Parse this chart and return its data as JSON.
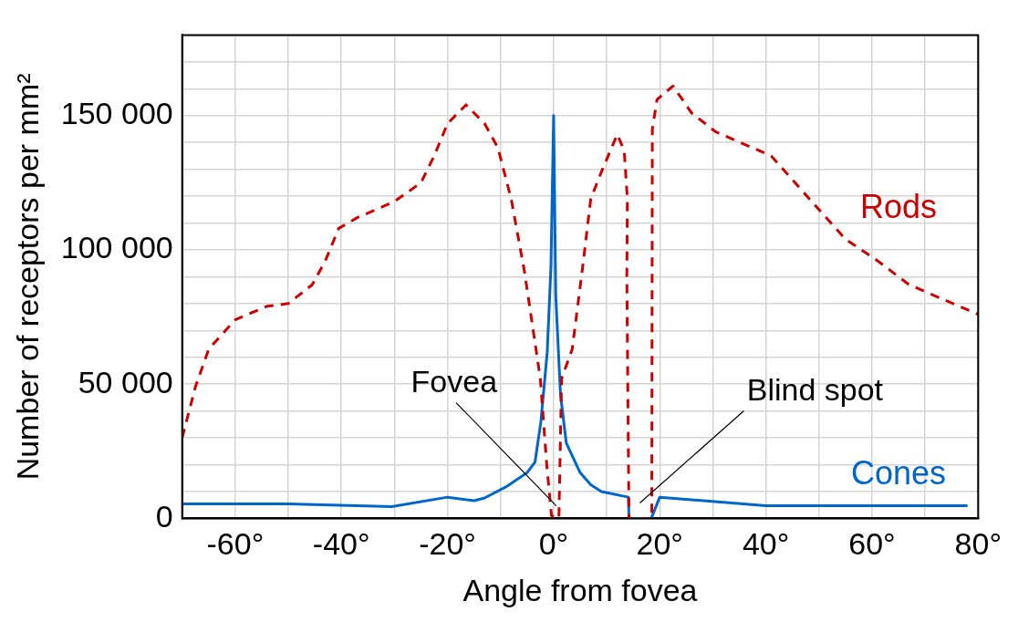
{
  "chart_data": {
    "type": "line",
    "xlabel": "Angle from fovea",
    "ylabel": "Number of receptors per mm²",
    "xlim": [
      -70,
      80
    ],
    "xticks": [
      {
        "value": -70,
        "label": null
      },
      {
        "value": -60,
        "label": "-60°"
      },
      {
        "value": -50,
        "label": null
      },
      {
        "value": -40,
        "label": "-40°"
      },
      {
        "value": -30,
        "label": null
      },
      {
        "value": -20,
        "label": "-20°"
      },
      {
        "value": -10,
        "label": null
      },
      {
        "value": 0,
        "label": "0°"
      },
      {
        "value": 10,
        "label": null
      },
      {
        "value": 20,
        "label": "20°"
      },
      {
        "value": 30,
        "label": null
      },
      {
        "value": 40,
        "label": "40°"
      },
      {
        "value": 50,
        "label": null
      },
      {
        "value": 60,
        "label": "60°"
      },
      {
        "value": 70,
        "label": null
      },
      {
        "value": 80,
        "label": "80°"
      }
    ],
    "ylim": [
      0,
      180000
    ],
    "yticks": [
      {
        "value": 0,
        "label": "0"
      },
      {
        "value": 10000,
        "label": null
      },
      {
        "value": 20000,
        "label": null
      },
      {
        "value": 30000,
        "label": null
      },
      {
        "value": 40000,
        "label": null
      },
      {
        "value": 50000,
        "label": "50 000"
      },
      {
        "value": 60000,
        "label": null
      },
      {
        "value": 70000,
        "label": null
      },
      {
        "value": 80000,
        "label": null
      },
      {
        "value": 90000,
        "label": null
      },
      {
        "value": 100000,
        "label": "100 000"
      },
      {
        "value": 110000,
        "label": null
      },
      {
        "value": 120000,
        "label": null
      },
      {
        "value": 130000,
        "label": null
      },
      {
        "value": 140000,
        "label": null
      },
      {
        "value": 150000,
        "label": "150 000"
      },
      {
        "value": 160000,
        "label": null
      },
      {
        "value": 170000,
        "label": null
      },
      {
        "value": 180000,
        "label": null
      }
    ],
    "grid": true,
    "legend": false,
    "marker": "none",
    "series": [
      {
        "name": "Rods",
        "color": "#cc0000",
        "line_style": "dashed",
        "x": [
          -70,
          -67.5,
          -65,
          -60,
          -54,
          -50,
          -45.5,
          -43,
          -40.5,
          -37,
          -30,
          -25,
          -22.5,
          -20,
          -16.5,
          -13,
          -10.5,
          -8,
          -5.5,
          -2.5,
          -1.3,
          -0.4,
          1,
          1.5,
          3.5,
          5.5,
          7,
          9,
          12,
          13.3,
          13.9,
          13.8,
          14.2,
          18.5,
          18.6,
          19.5,
          22.5,
          26,
          30.5,
          41,
          45.5,
          50,
          55,
          61,
          67,
          80
        ],
        "values": [
          30000,
          49000,
          63000,
          74000,
          79000,
          80000,
          87000,
          96000,
          108000,
          112000,
          118000,
          125000,
          135000,
          147000,
          154000,
          147000,
          138000,
          119000,
          92000,
          52000,
          20000,
          1000,
          0,
          52000,
          63000,
          94000,
          119000,
          129000,
          143000,
          137000,
          119000,
          90000,
          0,
          0,
          145000,
          156000,
          161000,
          151000,
          144000,
          135000,
          125000,
          115000,
          104000,
          96000,
          87000,
          76000
        ]
      },
      {
        "name": "Cones",
        "color": "#0066cc",
        "line_style": "solid",
        "x": [
          -70,
          -50,
          -30.5,
          -20,
          -15,
          -13,
          -9,
          -5,
          -3.5,
          -2.4,
          -1.2,
          -0.5,
          0,
          0.4,
          1.3,
          2.4,
          5,
          7,
          9,
          14.1,
          14.2,
          18.4,
          20,
          40,
          78
        ],
        "values": [
          5400,
          5400,
          4400,
          7900,
          6600,
          7600,
          11700,
          17000,
          21000,
          36000,
          62000,
          94000,
          150000,
          83000,
          46000,
          28000,
          17000,
          12500,
          10000,
          7900,
          0,
          0,
          7900,
          4700,
          4700
        ]
      }
    ],
    "annotations": [
      {
        "text": "Fovea",
        "x": 0.5,
        "y": 4700
      },
      "Blind spot"
    ]
  }
}
